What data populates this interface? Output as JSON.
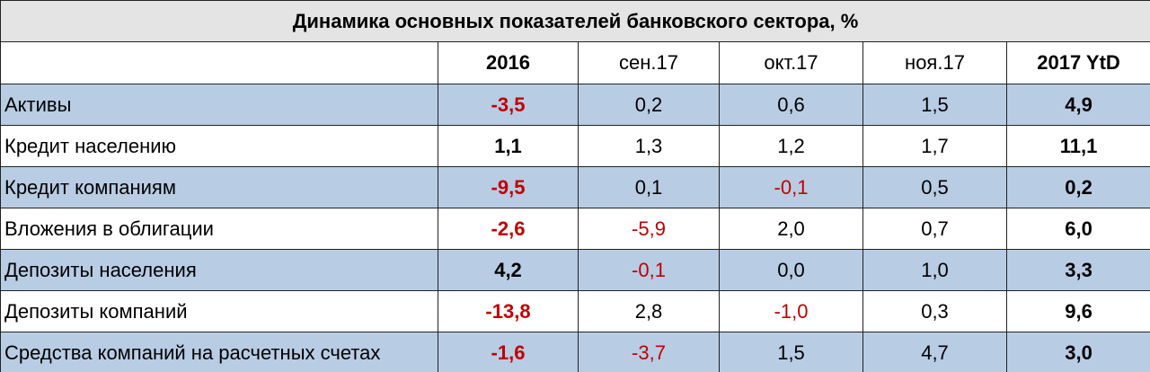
{
  "table": {
    "title": "Динамика основных показателей банковского сектора, %",
    "columns": [
      "2016",
      "сен.17",
      "окт.17",
      "ноя.17",
      "2017 YtD"
    ],
    "bold_columns": [
      0,
      4
    ],
    "rows": [
      {
        "label": "Активы",
        "values": [
          "-3,5",
          "0,2",
          "0,6",
          "1,5",
          "4,9"
        ]
      },
      {
        "label": "Кредит населению",
        "values": [
          "1,1",
          "1,3",
          "1,2",
          "1,7",
          "11,1"
        ]
      },
      {
        "label": "Кредит компаниям",
        "values": [
          "-9,5",
          "0,1",
          "-0,1",
          "0,5",
          "0,2"
        ]
      },
      {
        "label": "Вложения в облигации",
        "values": [
          "-2,6",
          "-5,9",
          "2,0",
          "0,7",
          "6,0"
        ]
      },
      {
        "label": "Депозиты населения",
        "values": [
          "4,2",
          "-0,1",
          "0,0",
          "1,0",
          "3,3"
        ]
      },
      {
        "label": "Депозиты компаний",
        "values": [
          "-13,8",
          "2,8",
          "-1,0",
          "0,3",
          "9,6"
        ]
      },
      {
        "label": "Средства компаний на расчетных счетах",
        "values": [
          "-1,6",
          "-3,7",
          "1,5",
          "4,7",
          "3,0"
        ]
      }
    ]
  }
}
